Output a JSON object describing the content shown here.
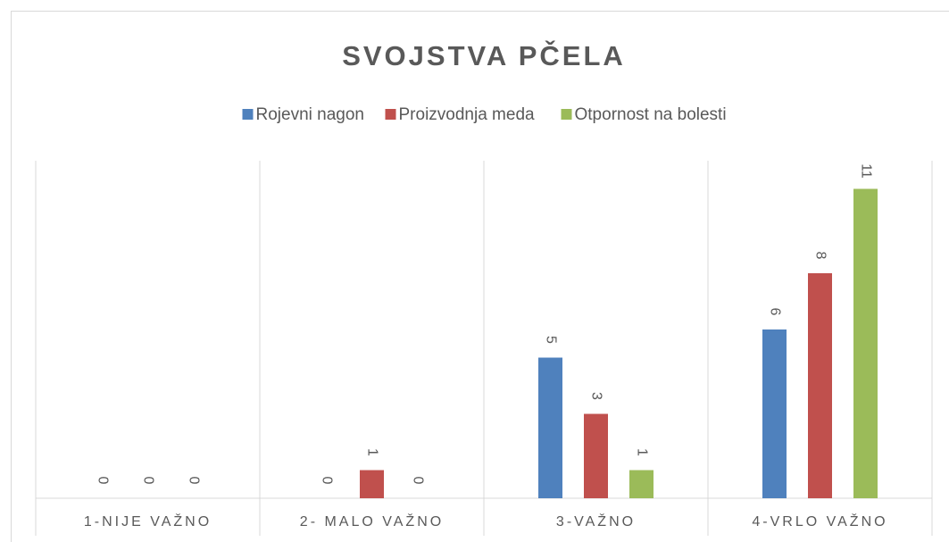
{
  "chart_data": {
    "type": "bar",
    "title": "SVOJSTVA PČELA",
    "categories": [
      "1-NIJE VAŽNO",
      "2- MALO VAŽNO",
      "3-VAŽNO",
      "4-VRLO VAŽNO"
    ],
    "series": [
      {
        "name": "Rojevni nagon",
        "color": "#4f81bd",
        "values": [
          0,
          0,
          5,
          6
        ]
      },
      {
        "name": "Proizvodnja meda",
        "color": "#c0504d",
        "values": [
          0,
          1,
          3,
          8
        ]
      },
      {
        "name": "Otpornost na bolesti",
        "color": "#9bbb59",
        "values": [
          0,
          0,
          1,
          11
        ]
      }
    ],
    "ylim": [
      0,
      12
    ],
    "legend": "top",
    "grid": false
  }
}
